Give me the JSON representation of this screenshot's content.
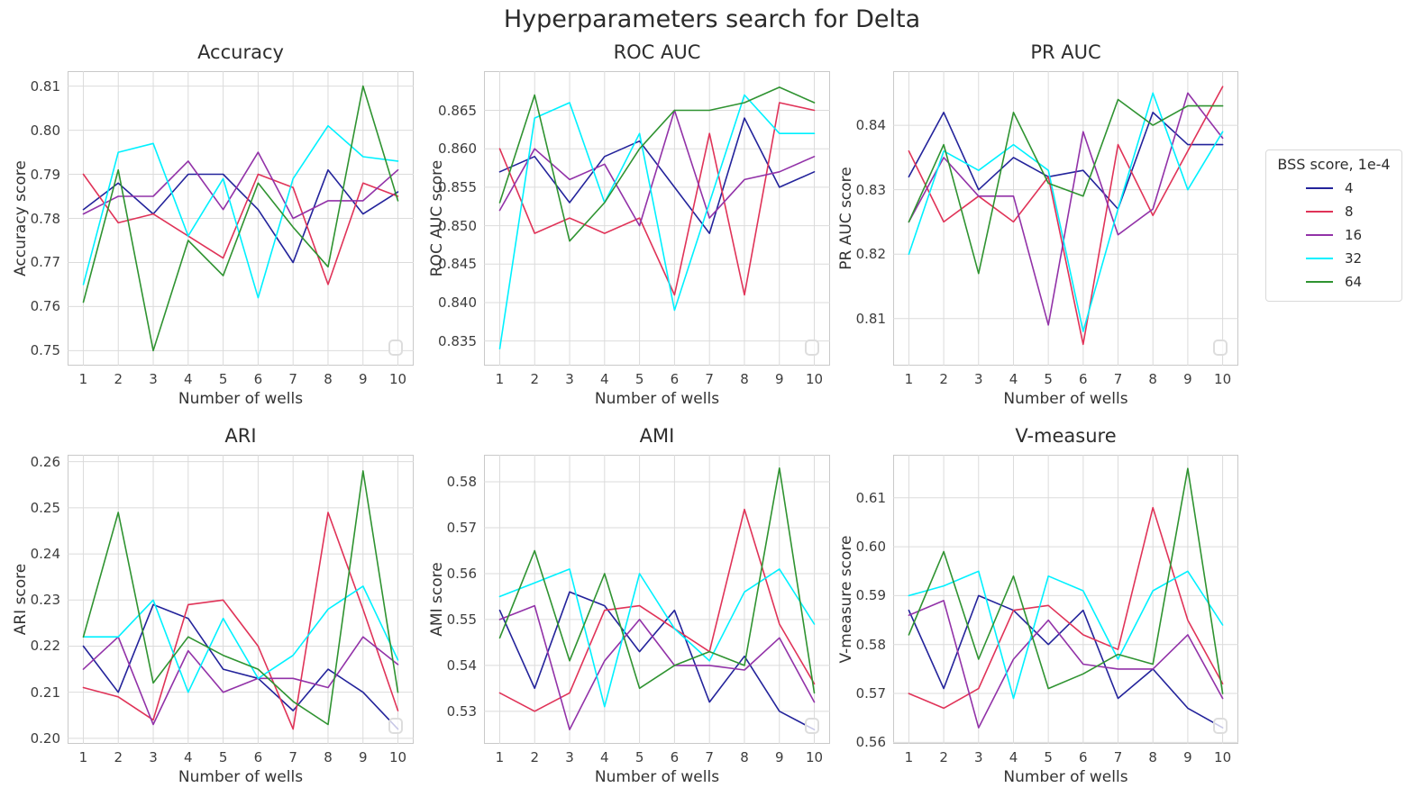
{
  "figure": {
    "title": "Hyperparameters search for Delta"
  },
  "legend": {
    "title": "BSS score, 1e-4",
    "entries": [
      {
        "label": "4",
        "color": "#23239b"
      },
      {
        "label": "8",
        "color": "#e03358"
      },
      {
        "label": "16",
        "color": "#9232a8"
      },
      {
        "label": "32",
        "color": "#00f1ff"
      },
      {
        "label": "64",
        "color": "#2f9331"
      }
    ]
  },
  "chart_data": [
    {
      "type": "line",
      "title": "Accuracy",
      "xlabel": "Number of wells",
      "ylabel": "Accuracy score",
      "x": [
        1,
        2,
        3,
        4,
        5,
        6,
        7,
        8,
        9,
        10
      ],
      "xlim": [
        0.55,
        10.45
      ],
      "ylim": [
        0.7466,
        0.8134
      ],
      "grid": true,
      "ytick_vals": [
        0.75,
        0.76,
        0.77,
        0.78,
        0.79,
        0.8,
        0.81
      ],
      "ytick_labels": [
        "0.75",
        "0.76",
        "0.77",
        "0.78",
        "0.79",
        "0.80",
        "0.81"
      ],
      "series": [
        {
          "name": "4",
          "values": [
            0.782,
            0.788,
            0.781,
            0.79,
            0.79,
            0.782,
            0.77,
            0.791,
            0.781,
            0.786
          ]
        },
        {
          "name": "8",
          "values": [
            0.79,
            0.779,
            0.781,
            0.776,
            0.771,
            0.79,
            0.787,
            0.765,
            0.788,
            0.785
          ]
        },
        {
          "name": "16",
          "values": [
            0.781,
            0.785,
            0.785,
            0.793,
            0.782,
            0.795,
            0.78,
            0.784,
            0.784,
            0.791
          ]
        },
        {
          "name": "32",
          "values": [
            0.765,
            0.795,
            0.797,
            0.776,
            0.789,
            0.762,
            0.789,
            0.801,
            0.794,
            0.793
          ]
        },
        {
          "name": "64",
          "values": [
            0.761,
            0.791,
            0.75,
            0.775,
            0.767,
            0.788,
            0.778,
            0.769,
            0.81,
            0.784
          ]
        }
      ]
    },
    {
      "type": "line",
      "title": "ROC AUC",
      "xlabel": "Number of wells",
      "ylabel": "ROC AUC score",
      "x": [
        1,
        2,
        3,
        4,
        5,
        6,
        7,
        8,
        9,
        10
      ],
      "xlim": [
        0.55,
        10.45
      ],
      "ylim": [
        0.8318,
        0.8701
      ],
      "grid": true,
      "ytick_vals": [
        0.835,
        0.84,
        0.845,
        0.85,
        0.855,
        0.86,
        0.865
      ],
      "ytick_labels": [
        "0.835",
        "0.840",
        "0.845",
        "0.850",
        "0.855",
        "0.860",
        "0.865"
      ],
      "series": [
        {
          "name": "4",
          "values": [
            0.857,
            0.859,
            0.853,
            0.859,
            0.861,
            0.855,
            0.849,
            0.864,
            0.855,
            0.857
          ]
        },
        {
          "name": "8",
          "values": [
            0.86,
            0.849,
            0.851,
            0.849,
            0.851,
            0.841,
            0.862,
            0.841,
            0.866,
            0.865
          ]
        },
        {
          "name": "16",
          "values": [
            0.852,
            0.86,
            0.856,
            0.858,
            0.85,
            0.865,
            0.851,
            0.856,
            0.857,
            0.859
          ]
        },
        {
          "name": "32",
          "values": [
            0.834,
            0.864,
            0.866,
            0.853,
            0.862,
            0.839,
            0.853,
            0.867,
            0.862,
            0.862
          ]
        },
        {
          "name": "64",
          "values": [
            0.853,
            0.867,
            0.848,
            0.853,
            0.86,
            0.865,
            0.865,
            0.866,
            0.868,
            0.866
          ]
        }
      ]
    },
    {
      "type": "line",
      "title": "PR AUC",
      "xlabel": "Number of wells",
      "ylabel": "PR AUC score",
      "x": [
        1,
        2,
        3,
        4,
        5,
        6,
        7,
        8,
        9,
        10
      ],
      "xlim": [
        0.55,
        10.45
      ],
      "ylim": [
        0.8027,
        0.8484
      ],
      "grid": true,
      "ytick_vals": [
        0.81,
        0.82,
        0.83,
        0.84
      ],
      "ytick_labels": [
        "0.81",
        "0.82",
        "0.83",
        "0.84"
      ],
      "series": [
        {
          "name": "4",
          "values": [
            0.832,
            0.842,
            0.83,
            0.835,
            0.832,
            0.833,
            0.827,
            0.842,
            0.837,
            0.837
          ]
        },
        {
          "name": "8",
          "values": [
            0.836,
            0.825,
            0.829,
            0.825,
            0.832,
            0.806,
            0.837,
            0.826,
            0.836,
            0.846
          ]
        },
        {
          "name": "16",
          "values": [
            0.825,
            0.835,
            0.829,
            0.829,
            0.809,
            0.839,
            0.823,
            0.827,
            0.845,
            0.838
          ]
        },
        {
          "name": "32",
          "values": [
            0.82,
            0.836,
            0.833,
            0.837,
            0.833,
            0.808,
            0.827,
            0.845,
            0.83,
            0.839
          ]
        },
        {
          "name": "64",
          "values": [
            0.825,
            0.837,
            0.817,
            0.842,
            0.831,
            0.829,
            0.844,
            0.84,
            0.843,
            0.843
          ]
        }
      ]
    },
    {
      "type": "line",
      "title": "ARI",
      "xlabel": "Number of wells",
      "ylabel": "ARI score",
      "x": [
        1,
        2,
        3,
        4,
        5,
        6,
        7,
        8,
        9,
        10
      ],
      "xlim": [
        0.55,
        10.45
      ],
      "ylim": [
        0.1988,
        0.2615
      ],
      "grid": true,
      "ytick_vals": [
        0.2,
        0.21,
        0.22,
        0.23,
        0.24,
        0.25,
        0.26
      ],
      "ytick_labels": [
        "0.20",
        "0.21",
        "0.22",
        "0.23",
        "0.24",
        "0.25",
        "0.26"
      ],
      "series": [
        {
          "name": "4",
          "values": [
            0.22,
            0.21,
            0.229,
            0.226,
            0.215,
            0.213,
            0.206,
            0.215,
            0.21,
            0.202
          ]
        },
        {
          "name": "8",
          "values": [
            0.211,
            0.209,
            0.204,
            0.229,
            0.23,
            0.22,
            0.202,
            0.249,
            0.228,
            0.206
          ]
        },
        {
          "name": "16",
          "values": [
            0.215,
            0.222,
            0.203,
            0.219,
            0.21,
            0.213,
            0.213,
            0.211,
            0.222,
            0.216
          ]
        },
        {
          "name": "32",
          "values": [
            0.222,
            0.222,
            0.23,
            0.21,
            0.226,
            0.213,
            0.218,
            0.228,
            0.233,
            0.217
          ]
        },
        {
          "name": "64",
          "values": [
            0.222,
            0.249,
            0.212,
            0.222,
            0.218,
            0.215,
            0.208,
            0.203,
            0.258,
            0.21
          ]
        }
      ]
    },
    {
      "type": "line",
      "title": "AMI",
      "xlabel": "Number of wells",
      "ylabel": "AMI score",
      "x": [
        1,
        2,
        3,
        4,
        5,
        6,
        7,
        8,
        9,
        10
      ],
      "xlim": [
        0.55,
        10.45
      ],
      "ylim": [
        0.5229,
        0.5859
      ],
      "grid": true,
      "ytick_vals": [
        0.53,
        0.54,
        0.55,
        0.56,
        0.57,
        0.58
      ],
      "ytick_labels": [
        "0.53",
        "0.54",
        "0.55",
        "0.56",
        "0.57",
        "0.58"
      ],
      "series": [
        {
          "name": "4",
          "values": [
            0.552,
            0.535,
            0.556,
            0.553,
            0.543,
            0.552,
            0.532,
            0.542,
            0.53,
            0.526
          ]
        },
        {
          "name": "8",
          "values": [
            0.534,
            0.53,
            0.534,
            0.552,
            0.553,
            0.548,
            0.543,
            0.574,
            0.549,
            0.536
          ]
        },
        {
          "name": "16",
          "values": [
            0.55,
            0.553,
            0.526,
            0.541,
            0.55,
            0.54,
            0.54,
            0.539,
            0.546,
            0.532
          ]
        },
        {
          "name": "32",
          "values": [
            0.555,
            0.558,
            0.561,
            0.531,
            0.56,
            0.548,
            0.541,
            0.556,
            0.561,
            0.549
          ]
        },
        {
          "name": "64",
          "values": [
            0.546,
            0.565,
            0.541,
            0.56,
            0.535,
            0.54,
            0.543,
            0.54,
            0.583,
            0.534
          ]
        }
      ]
    },
    {
      "type": "line",
      "title": "V-measure",
      "xlabel": "Number of wells",
      "ylabel": "V-measure score",
      "x": [
        1,
        2,
        3,
        4,
        5,
        6,
        7,
        8,
        9,
        10
      ],
      "xlim": [
        0.55,
        10.45
      ],
      "ylim": [
        0.5597,
        0.6188
      ],
      "grid": true,
      "ytick_vals": [
        0.56,
        0.57,
        0.58,
        0.59,
        0.6,
        0.61
      ],
      "ytick_labels": [
        "0.56",
        "0.57",
        "0.58",
        "0.59",
        "0.60",
        "0.61"
      ],
      "series": [
        {
          "name": "4",
          "values": [
            0.587,
            0.571,
            0.59,
            0.587,
            0.58,
            0.587,
            0.569,
            0.575,
            0.567,
            0.563
          ]
        },
        {
          "name": "8",
          "values": [
            0.57,
            0.567,
            0.571,
            0.587,
            0.588,
            0.582,
            0.579,
            0.608,
            0.585,
            0.572
          ]
        },
        {
          "name": "16",
          "values": [
            0.586,
            0.589,
            0.563,
            0.577,
            0.585,
            0.576,
            0.575,
            0.575,
            0.582,
            0.569
          ]
        },
        {
          "name": "32",
          "values": [
            0.59,
            0.592,
            0.595,
            0.569,
            0.594,
            0.591,
            0.577,
            0.591,
            0.595,
            0.584
          ]
        },
        {
          "name": "64",
          "values": [
            0.582,
            0.599,
            0.577,
            0.594,
            0.571,
            0.574,
            0.578,
            0.576,
            0.616,
            0.57
          ]
        }
      ]
    }
  ]
}
